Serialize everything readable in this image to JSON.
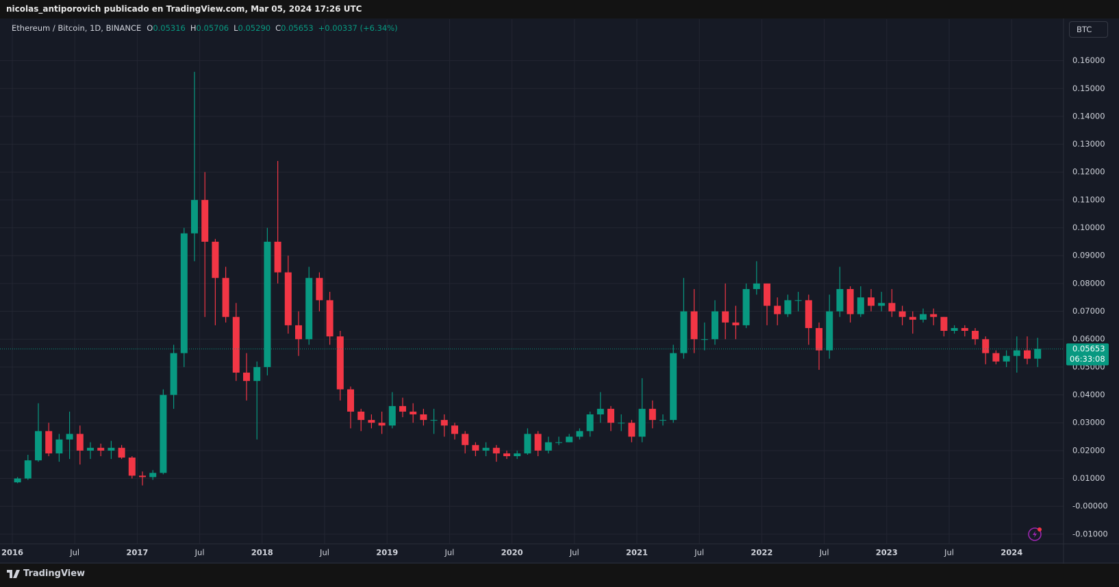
{
  "header": {
    "text": "nicolas_antiporovich publicado en TradingView.com, Mar 05, 2024 17:26 UTC"
  },
  "legend": {
    "symbol": "Ethereum / Bitcoin, 1D, BINANCE",
    "items": [
      {
        "key": "O",
        "value": "0.05316"
      },
      {
        "key": "H",
        "value": "0.05706"
      },
      {
        "key": "L",
        "value": "0.05290"
      },
      {
        "key": "C",
        "value": "0.05653"
      }
    ],
    "change": "+0.00337 (+6.34%)"
  },
  "currency_button": "BTC",
  "footer": {
    "brand": "TradingView"
  },
  "chart_data": {
    "type": "candlestick",
    "up_color": "#089981",
    "down_color": "#f23645",
    "grid": true,
    "x": [
      "2016-01",
      "2016-02",
      "2016-03",
      "2016-04",
      "2016-05",
      "2016-06",
      "2016-07",
      "2016-08",
      "2016-09",
      "2016-10",
      "2016-11",
      "2016-12",
      "2017-01",
      "2017-02",
      "2017-03",
      "2017-04",
      "2017-05",
      "2017-06",
      "2017-07",
      "2017-08",
      "2017-09",
      "2017-10",
      "2017-11",
      "2017-12",
      "2018-01",
      "2018-02",
      "2018-03",
      "2018-04",
      "2018-05",
      "2018-06",
      "2018-07",
      "2018-08",
      "2018-09",
      "2018-10",
      "2018-11",
      "2018-12",
      "2019-01",
      "2019-02",
      "2019-03",
      "2019-04",
      "2019-05",
      "2019-06",
      "2019-07",
      "2019-08",
      "2019-09",
      "2019-10",
      "2019-11",
      "2019-12",
      "2020-01",
      "2020-02",
      "2020-03",
      "2020-04",
      "2020-05",
      "2020-06",
      "2020-07",
      "2020-08",
      "2020-09",
      "2020-10",
      "2020-11",
      "2020-12",
      "2021-01",
      "2021-02",
      "2021-03",
      "2021-04",
      "2021-05",
      "2021-06",
      "2021-07",
      "2021-08",
      "2021-09",
      "2021-10",
      "2021-11",
      "2021-12",
      "2022-01",
      "2022-02",
      "2022-03",
      "2022-04",
      "2022-05",
      "2022-06",
      "2022-07",
      "2022-08",
      "2022-09",
      "2022-10",
      "2022-11",
      "2022-12",
      "2023-01",
      "2023-02",
      "2023-03",
      "2023-04",
      "2023-05",
      "2023-06",
      "2023-07",
      "2023-08",
      "2023-09",
      "2023-10",
      "2023-11",
      "2023-12",
      "2024-01",
      "2024-02",
      "2024-03"
    ],
    "open": [
      0.0086,
      0.01,
      0.0165,
      0.027,
      0.019,
      0.024,
      0.026,
      0.02,
      0.021,
      0.02,
      0.021,
      0.0175,
      0.011,
      0.0105,
      0.012,
      0.04,
      0.055,
      0.098,
      0.11,
      0.095,
      0.082,
      0.068,
      0.048,
      0.045,
      0.05,
      0.095,
      0.084,
      0.065,
      0.06,
      0.082,
      0.074,
      0.061,
      0.042,
      0.034,
      0.031,
      0.03,
      0.029,
      0.036,
      0.034,
      0.033,
      0.031,
      0.031,
      0.029,
      0.026,
      0.022,
      0.02,
      0.021,
      0.019,
      0.018,
      0.019,
      0.026,
      0.02,
      0.023,
      0.023,
      0.025,
      0.027,
      0.033,
      0.035,
      0.03,
      0.03,
      0.025,
      0.035,
      0.031,
      0.031,
      0.055,
      0.07,
      0.06,
      0.06,
      0.07,
      0.066,
      0.065,
      0.078,
      0.08,
      0.072,
      0.069,
      0.074,
      0.074,
      0.064,
      0.056,
      0.07,
      0.078,
      0.069,
      0.075,
      0.072,
      0.073,
      0.07,
      0.068,
      0.067,
      0.069,
      0.068,
      0.063,
      0.064,
      0.063,
      0.06,
      0.055,
      0.052,
      0.054,
      0.056,
      0.053
    ],
    "high": [
      0.0105,
      0.0185,
      0.037,
      0.03,
      0.026,
      0.034,
      0.029,
      0.023,
      0.0225,
      0.0235,
      0.022,
      0.018,
      0.0125,
      0.013,
      0.042,
      0.058,
      0.1,
      0.156,
      0.12,
      0.096,
      0.086,
      0.073,
      0.055,
      0.052,
      0.1,
      0.124,
      0.09,
      0.07,
      0.086,
      0.084,
      0.077,
      0.063,
      0.043,
      0.035,
      0.033,
      0.034,
      0.041,
      0.039,
      0.037,
      0.035,
      0.035,
      0.033,
      0.03,
      0.027,
      0.023,
      0.023,
      0.022,
      0.02,
      0.02,
      0.028,
      0.027,
      0.025,
      0.025,
      0.026,
      0.028,
      0.034,
      0.041,
      0.036,
      0.033,
      0.031,
      0.046,
      0.038,
      0.033,
      0.058,
      0.082,
      0.078,
      0.066,
      0.074,
      0.08,
      0.072,
      0.08,
      0.088,
      0.08,
      0.075,
      0.076,
      0.077,
      0.076,
      0.066,
      0.076,
      0.086,
      0.079,
      0.079,
      0.078,
      0.077,
      0.078,
      0.072,
      0.07,
      0.071,
      0.071,
      0.068,
      0.065,
      0.065,
      0.064,
      0.061,
      0.056,
      0.056,
      0.061,
      0.061,
      0.0605
    ],
    "low": [
      0.0083,
      0.0095,
      0.016,
      0.018,
      0.016,
      0.017,
      0.015,
      0.017,
      0.018,
      0.017,
      0.017,
      0.01,
      0.0075,
      0.0095,
      0.0115,
      0.035,
      0.05,
      0.088,
      0.068,
      0.065,
      0.066,
      0.045,
      0.038,
      0.024,
      0.047,
      0.08,
      0.062,
      0.054,
      0.058,
      0.07,
      0.058,
      0.038,
      0.028,
      0.027,
      0.028,
      0.026,
      0.028,
      0.032,
      0.03,
      0.029,
      0.026,
      0.025,
      0.024,
      0.019,
      0.018,
      0.018,
      0.016,
      0.017,
      0.017,
      0.0185,
      0.018,
      0.019,
      0.022,
      0.023,
      0.024,
      0.025,
      0.03,
      0.027,
      0.027,
      0.023,
      0.023,
      0.028,
      0.029,
      0.03,
      0.053,
      0.055,
      0.056,
      0.058,
      0.06,
      0.06,
      0.064,
      0.076,
      0.065,
      0.065,
      0.068,
      0.07,
      0.058,
      0.049,
      0.053,
      0.068,
      0.066,
      0.068,
      0.07,
      0.07,
      0.068,
      0.065,
      0.062,
      0.066,
      0.065,
      0.061,
      0.062,
      0.061,
      0.058,
      0.051,
      0.051,
      0.05,
      0.048,
      0.051,
      0.05
    ],
    "close": [
      0.01,
      0.0165,
      0.027,
      0.019,
      0.024,
      0.026,
      0.02,
      0.021,
      0.02,
      0.021,
      0.0175,
      0.011,
      0.0105,
      0.012,
      0.04,
      0.055,
      0.098,
      0.11,
      0.095,
      0.082,
      0.068,
      0.048,
      0.045,
      0.05,
      0.095,
      0.084,
      0.065,
      0.06,
      0.082,
      0.074,
      0.061,
      0.042,
      0.034,
      0.031,
      0.03,
      0.029,
      0.036,
      0.034,
      0.033,
      0.031,
      0.031,
      0.029,
      0.026,
      0.022,
      0.02,
      0.021,
      0.019,
      0.018,
      0.019,
      0.026,
      0.02,
      0.023,
      0.023,
      0.025,
      0.027,
      0.033,
      0.035,
      0.03,
      0.03,
      0.025,
      0.035,
      0.031,
      0.031,
      0.055,
      0.07,
      0.06,
      0.06,
      0.07,
      0.066,
      0.065,
      0.078,
      0.08,
      0.072,
      0.069,
      0.074,
      0.074,
      0.064,
      0.056,
      0.07,
      0.078,
      0.069,
      0.075,
      0.072,
      0.073,
      0.07,
      0.068,
      0.067,
      0.069,
      0.068,
      0.063,
      0.064,
      0.063,
      0.06,
      0.055,
      0.052,
      0.054,
      0.056,
      0.053,
      0.05653
    ],
    "xticks": [
      {
        "value": "2016-01",
        "label": "2016"
      },
      {
        "value": "2016-07",
        "label": "Jul"
      },
      {
        "value": "2017-01",
        "label": "2017"
      },
      {
        "value": "2017-07",
        "label": "Jul"
      },
      {
        "value": "2018-01",
        "label": "2018"
      },
      {
        "value": "2018-07",
        "label": "Jul"
      },
      {
        "value": "2019-01",
        "label": "2019"
      },
      {
        "value": "2019-07",
        "label": "Jul"
      },
      {
        "value": "2020-01",
        "label": "2020"
      },
      {
        "value": "2020-07",
        "label": "Jul"
      },
      {
        "value": "2021-01",
        "label": "2021"
      },
      {
        "value": "2021-07",
        "label": "Jul"
      },
      {
        "value": "2022-01",
        "label": "2022"
      },
      {
        "value": "2022-07",
        "label": "Jul"
      },
      {
        "value": "2023-01",
        "label": "2023"
      },
      {
        "value": "2023-07",
        "label": "Jul"
      },
      {
        "value": "2024-01",
        "label": "2024"
      }
    ],
    "ylim": [
      -0.0136,
      0.1749
    ],
    "yticks": [
      {
        "value": -0.01,
        "label": "-0.01000"
      },
      {
        "value": 0,
        "label": "-0.00000"
      },
      {
        "value": 0.01,
        "label": "0.01000"
      },
      {
        "value": 0.02,
        "label": "0.02000"
      },
      {
        "value": 0.03,
        "label": "0.03000"
      },
      {
        "value": 0.04,
        "label": "0.04000"
      },
      {
        "value": 0.05,
        "label": "0.05000"
      },
      {
        "value": 0.06,
        "label": "0.06000"
      },
      {
        "value": 0.07,
        "label": "0.07000"
      },
      {
        "value": 0.08,
        "label": "0.08000"
      },
      {
        "value": 0.09,
        "label": "0.09000"
      },
      {
        "value": 0.1,
        "label": "0.10000"
      },
      {
        "value": 0.11,
        "label": "0.11000"
      },
      {
        "value": 0.12,
        "label": "0.12000"
      },
      {
        "value": 0.13,
        "label": "0.13000"
      },
      {
        "value": 0.14,
        "label": "0.14000"
      },
      {
        "value": 0.15,
        "label": "0.15000"
      },
      {
        "value": 0.16,
        "label": "0.16000"
      }
    ],
    "last_price": {
      "value": 0.05653,
      "label": "0.05653",
      "countdown": "06:33:08"
    }
  }
}
